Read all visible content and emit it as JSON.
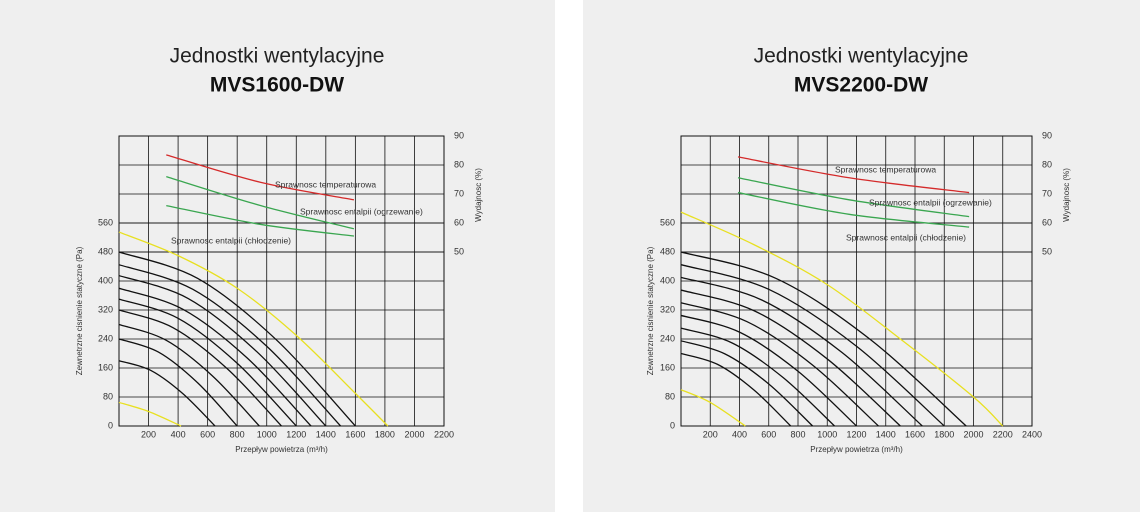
{
  "chart_data": [
    {
      "type": "line",
      "title": "Jednostki wentylacyjne",
      "subtitle": "MVS1600-DW",
      "xlabel": "Przepływ powietrza (m³/h)",
      "ylabel": "Zewnetrzne cisnienie statyczne (Pa)",
      "y2label": "Wydajnosc (%)",
      "xlim": [
        0,
        2200
      ],
      "xticks": [
        200,
        400,
        600,
        800,
        1000,
        1200,
        1400,
        1600,
        1800,
        2000,
        2200
      ],
      "ylim": [
        0,
        800
      ],
      "yticks": [
        0,
        80,
        160,
        240,
        320,
        400,
        480,
        560
      ],
      "y2lim": [
        -10,
        90
      ],
      "y2ticks": [
        50,
        60,
        70,
        80,
        90
      ],
      "grid": true,
      "series": [
        {
          "color": "#111111",
          "x": [
            0,
            533,
            1067,
            1600
          ],
          "values": [
            480,
            407,
            237,
            0
          ]
        },
        {
          "color": "#111111",
          "x": [
            0,
            500,
            1000,
            1500
          ],
          "values": [
            445,
            377,
            220,
            0
          ]
        },
        {
          "color": "#111111",
          "x": [
            0,
            467,
            933,
            1400
          ],
          "values": [
            415,
            352,
            205,
            0
          ]
        },
        {
          "color": "#111111",
          "x": [
            0,
            433,
            867,
            1300
          ],
          "values": [
            380,
            322,
            188,
            0
          ]
        },
        {
          "color": "#111111",
          "x": [
            0,
            400,
            800,
            1200
          ],
          "values": [
            350,
            297,
            173,
            0
          ]
        },
        {
          "color": "#111111",
          "x": [
            0,
            367,
            733,
            1100
          ],
          "values": [
            320,
            271,
            158,
            0
          ]
        },
        {
          "color": "#111111",
          "x": [
            0,
            317,
            633,
            950
          ],
          "values": [
            280,
            237,
            138,
            0
          ]
        },
        {
          "color": "#111111",
          "x": [
            0,
            267,
            533,
            800
          ],
          "values": [
            240,
            204,
            119,
            0
          ]
        },
        {
          "color": "#111111",
          "x": [
            0,
            217,
            433,
            650
          ],
          "values": [
            180,
            153,
            89,
            0
          ]
        },
        {
          "color": "#e8e020",
          "x": [
            0,
            400,
            800,
            1200,
            1600,
            1820
          ],
          "values": [
            535,
            470,
            380,
            250,
            90,
            0
          ]
        },
        {
          "color": "#e8e020",
          "x": [
            0,
            200,
            420
          ],
          "values": [
            65,
            40,
            0
          ]
        },
        {
          "name": "Sprawnosc temperaturowa",
          "color": "#d42a2a",
          "axis": "y2",
          "x": [
            320,
            960,
            1590
          ],
          "values": [
            83.5,
            74,
            68
          ]
        },
        {
          "name": "Sprawnosc entalpii (ogrzewanie)",
          "color": "#3aa650",
          "axis": "y2",
          "x": [
            320,
            960,
            1590
          ],
          "values": [
            76,
            66,
            58
          ]
        },
        {
          "name": "Sprawnosc entalpii (chłodzenie)",
          "color": "#3aa650",
          "axis": "y2",
          "x": [
            320,
            960,
            1590
          ],
          "values": [
            66,
            59.5,
            55.5
          ]
        }
      ]
    },
    {
      "type": "line",
      "title": "Jednostki wentylacyjne",
      "subtitle": "MVS2200-DW",
      "xlabel": "Przepływ powietrza (m³/h)",
      "ylabel": "Zewnetrzne cisnienie statyczne (Pa)",
      "y2label": "Wydajnosc (%)",
      "xlim": [
        0,
        2400
      ],
      "xticks": [
        200,
        400,
        600,
        800,
        1000,
        1200,
        1400,
        1600,
        1800,
        2000,
        2200,
        2400
      ],
      "ylim": [
        0,
        800
      ],
      "yticks": [
        0,
        80,
        160,
        240,
        320,
        400,
        480,
        560
      ],
      "y2lim": [
        -10,
        90
      ],
      "y2ticks": [
        50,
        60,
        70,
        80,
        90
      ],
      "grid": true,
      "series": [
        {
          "color": "#111111",
          "x": [
            0,
            650,
            1300,
            1950
          ],
          "values": [
            480,
            407,
            237,
            0
          ]
        },
        {
          "color": "#111111",
          "x": [
            0,
            600,
            1200,
            1800
          ],
          "values": [
            445,
            377,
            220,
            0
          ]
        },
        {
          "color": "#111111",
          "x": [
            0,
            550,
            1100,
            1650
          ],
          "values": [
            410,
            348,
            203,
            0
          ]
        },
        {
          "color": "#111111",
          "x": [
            0,
            500,
            1000,
            1500
          ],
          "values": [
            375,
            318,
            185,
            0
          ]
        },
        {
          "color": "#111111",
          "x": [
            0,
            450,
            900,
            1350
          ],
          "values": [
            340,
            288,
            168,
            0
          ]
        },
        {
          "color": "#111111",
          "x": [
            0,
            400,
            800,
            1200
          ],
          "values": [
            305,
            259,
            151,
            0
          ]
        },
        {
          "color": "#111111",
          "x": [
            0,
            350,
            700,
            1050
          ],
          "values": [
            270,
            229,
            133,
            0
          ]
        },
        {
          "color": "#111111",
          "x": [
            0,
            300,
            600,
            900
          ],
          "values": [
            235,
            199,
            116,
            0
          ]
        },
        {
          "color": "#111111",
          "x": [
            0,
            250,
            500,
            750
          ],
          "values": [
            200,
            170,
            99,
            0
          ]
        },
        {
          "color": "#e8e020",
          "x": [
            0,
            500,
            1000,
            1500,
            2000,
            2200
          ],
          "values": [
            590,
            500,
            390,
            240,
            80,
            0
          ]
        },
        {
          "color": "#e8e020",
          "x": [
            0,
            200,
            440
          ],
          "values": [
            100,
            65,
            0
          ]
        },
        {
          "name": "Sprawnosc temperaturowa",
          "color": "#d42a2a",
          "axis": "y2",
          "x": [
            390,
            1150,
            1970
          ],
          "values": [
            82.8,
            75.6,
            70.5
          ]
        },
        {
          "name": "Sprawnosc entalpii (ogrzewanie)",
          "color": "#3aa650",
          "axis": "y2",
          "x": [
            390,
            1150,
            1970
          ],
          "values": [
            75.6,
            68,
            62.2
          ]
        },
        {
          "name": "Sprawnosc entalpii (chłodzenie)",
          "color": "#3aa650",
          "axis": "y2",
          "x": [
            390,
            1150,
            1970
          ],
          "values": [
            70.5,
            63,
            58.6
          ]
        }
      ]
    }
  ]
}
